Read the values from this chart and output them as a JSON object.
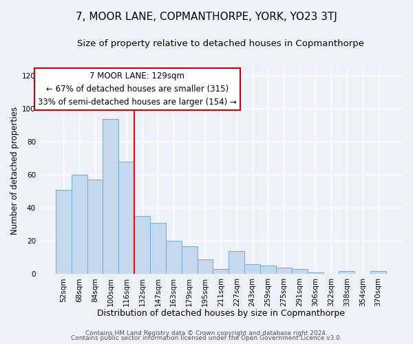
{
  "title": "7, MOOR LANE, COPMANTHORPE, YORK, YO23 3TJ",
  "subtitle": "Size of property relative to detached houses in Copmanthorpe",
  "xlabel": "Distribution of detached houses by size in Copmanthorpe",
  "ylabel": "Number of detached properties",
  "bar_labels": [
    "52sqm",
    "68sqm",
    "84sqm",
    "100sqm",
    "116sqm",
    "132sqm",
    "147sqm",
    "163sqm",
    "179sqm",
    "195sqm",
    "211sqm",
    "227sqm",
    "243sqm",
    "259sqm",
    "275sqm",
    "291sqm",
    "306sqm",
    "322sqm",
    "338sqm",
    "354sqm",
    "370sqm"
  ],
  "bar_values": [
    51,
    60,
    57,
    94,
    68,
    35,
    31,
    20,
    17,
    9,
    3,
    14,
    6,
    5,
    4,
    3,
    1,
    0,
    2,
    0,
    2
  ],
  "bar_color": "#c5d8ee",
  "bar_edge_color": "#6baed6",
  "vline_color": "red",
  "vline_position": 4.5,
  "ylim": [
    0,
    125
  ],
  "yticks": [
    0,
    20,
    40,
    60,
    80,
    100,
    120
  ],
  "annotation_line1": "7 MOOR LANE: 129sqm",
  "annotation_line2": "← 67% of detached houses are smaller (315)",
  "annotation_line3": "33% of semi-detached houses are larger (154) →",
  "annotation_box_color": "white",
  "annotation_box_edge": "#cc0000",
  "footer1": "Contains HM Land Registry data © Crown copyright and database right 2024.",
  "footer2": "Contains public sector information licensed under the Open Government Licence v3.0.",
  "title_fontsize": 11,
  "subtitle_fontsize": 9.5,
  "xlabel_fontsize": 9,
  "ylabel_fontsize": 8.5,
  "tick_fontsize": 7.5,
  "annotation_fontsize": 8.5,
  "footer_fontsize": 6.5,
  "background_color": "#eef2f8",
  "grid_color": "#ffffff"
}
